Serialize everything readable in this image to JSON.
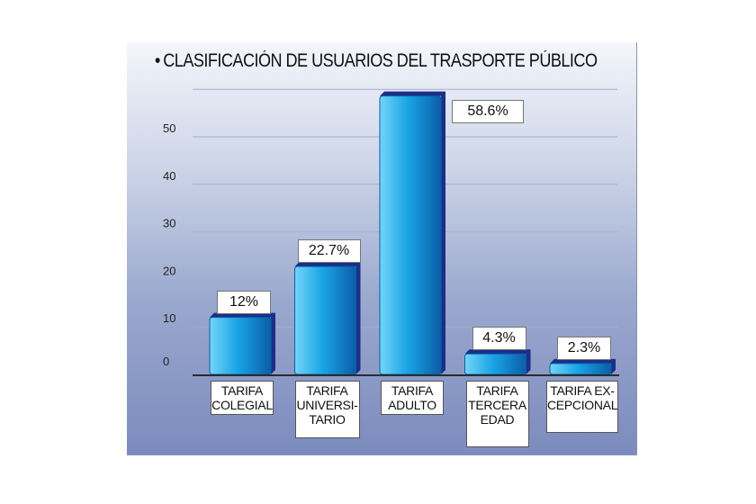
{
  "chart_data": {
    "type": "bar",
    "title": "CLASIFICACIÓN DE USUARIOS DEL TRASPORTE PÚBLICO",
    "categories": [
      "TARIFA\nCOLEGIAL",
      "TARIFA\nUNIVERSI-\nTARIO",
      "TARIFA\nADULTO",
      "TARIFA\nTERCERA\nEDAD",
      "TARIFA EX-\nCEPCIONAL"
    ],
    "values": [
      12,
      22.7,
      58.6,
      4.3,
      2.3
    ],
    "data_labels": [
      "12%",
      "22.7%",
      "58.6%",
      "4.3%",
      "2.3%"
    ],
    "y_ticks": [
      0,
      10,
      20,
      30,
      40,
      50
    ],
    "ylim": [
      0,
      60
    ],
    "grid": true,
    "colors": {
      "bar_light": "#74d4f8",
      "bar_mid": "#1aa5e6",
      "bar_dark": "#0b5ea8",
      "bar_shadow": "#1b2f88",
      "grid": "#9fb0d4",
      "axis": "#2b2b2b"
    }
  }
}
